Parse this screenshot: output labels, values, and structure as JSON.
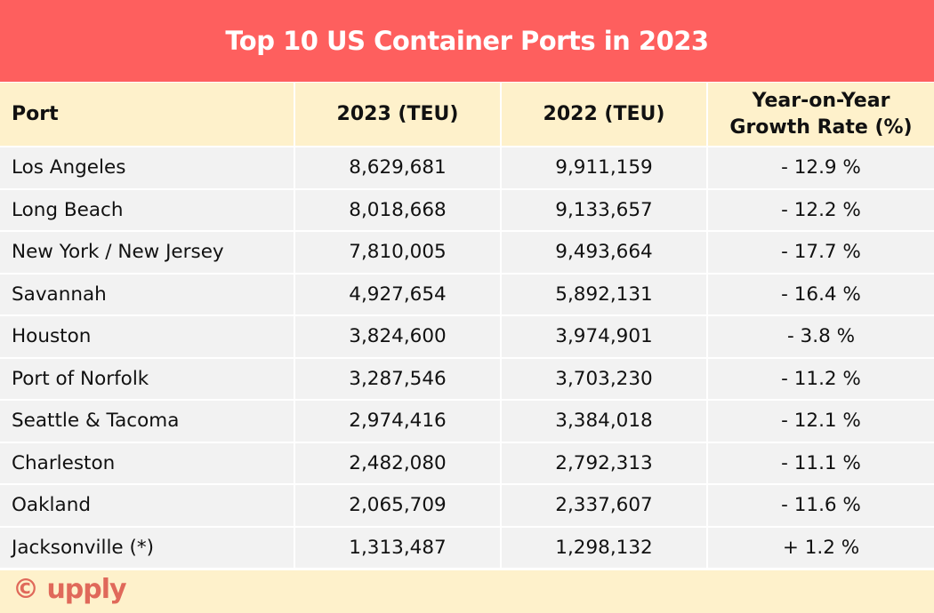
{
  "title": "Top 10 US Container Ports in 2023",
  "columns": [
    "Port",
    "2023 (TEU)",
    "2022 (TEU)",
    "Year-on-Year Growth Rate (%)"
  ],
  "rows": [
    [
      "Los Angeles",
      "8,629,681",
      "9,911,159",
      "- 12.9 %"
    ],
    [
      "Long Beach",
      "8,018,668",
      "9,133,657",
      "- 12.2 %"
    ],
    [
      "New York / New Jersey",
      "7,810,005",
      "9,493,664",
      "- 17.7 %"
    ],
    [
      "Savannah",
      "4,927,654",
      "5,892,131",
      "- 16.4 %"
    ],
    [
      "Houston",
      "3,824,600",
      "3,974,901",
      "- 3.8 %"
    ],
    [
      "Port of Norfolk",
      "3,287,546",
      "3,703,230",
      "- 11.2 %"
    ],
    [
      "Seattle & Tacoma",
      "2,974,416",
      "3,384,018",
      "- 12.1 %"
    ],
    [
      "Charleston",
      "2,482,080",
      "2,792,313",
      "- 11.1 %"
    ],
    [
      "Oakland",
      "2,065,709",
      "2,337,607",
      "- 11.6 %"
    ],
    [
      "Jacksonville (*)",
      "1,313,487",
      "1,298,132",
      "+ 1.2 %"
    ]
  ],
  "footer": {
    "logo": "© upply"
  },
  "colors": {
    "title_bg": "#fe5f5e",
    "header_bg": "#fef1cb",
    "row_bg": "#f2f2f2",
    "logo": "#e0695a"
  }
}
